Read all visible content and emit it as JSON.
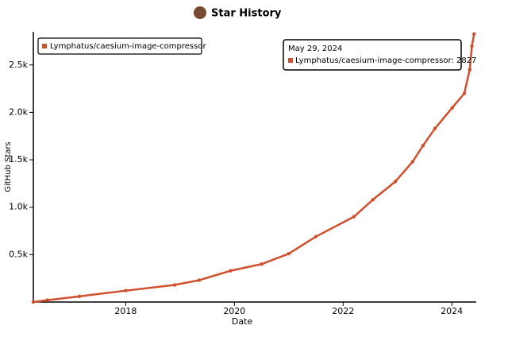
{
  "chart_data": {
    "type": "line",
    "title": "Star History",
    "x_label": "Date",
    "y_label": "GitHub Stars",
    "legend_position": "top-left",
    "xlim": [
      2016.3,
      2024.45
    ],
    "xticks": [
      2018,
      2020,
      2022,
      2024
    ],
    "ylim": [
      0,
      2850
    ],
    "yticks": [
      {
        "value": 500,
        "label": "0.5k"
      },
      {
        "value": 1000,
        "label": "1.0k"
      },
      {
        "value": 1500,
        "label": "1.5k"
      },
      {
        "value": 2000,
        "label": "2.0k"
      },
      {
        "value": 2500,
        "label": "2.5k"
      }
    ],
    "x": [
      2016.3,
      2016.56,
      2017.15,
      2018.0,
      2018.9,
      2019.35,
      2019.93,
      2020.5,
      2021.0,
      2021.5,
      2022.2,
      2022.55,
      2022.96,
      2023.28,
      2023.47,
      2023.69,
      2024.01,
      2024.23,
      2024.33,
      2024.37,
      2024.41
    ],
    "series": [
      {
        "name": "Lymphatus/caesium-image-compressor",
        "color": "#d0502d",
        "values": [
          0,
          20,
          60,
          120,
          180,
          230,
          330,
          400,
          510,
          690,
          900,
          1080,
          1270,
          1480,
          1650,
          1830,
          2050,
          2200,
          2450,
          2700,
          2827
        ]
      }
    ],
    "tooltip": {
      "date": "May 29, 2024"
    }
  }
}
